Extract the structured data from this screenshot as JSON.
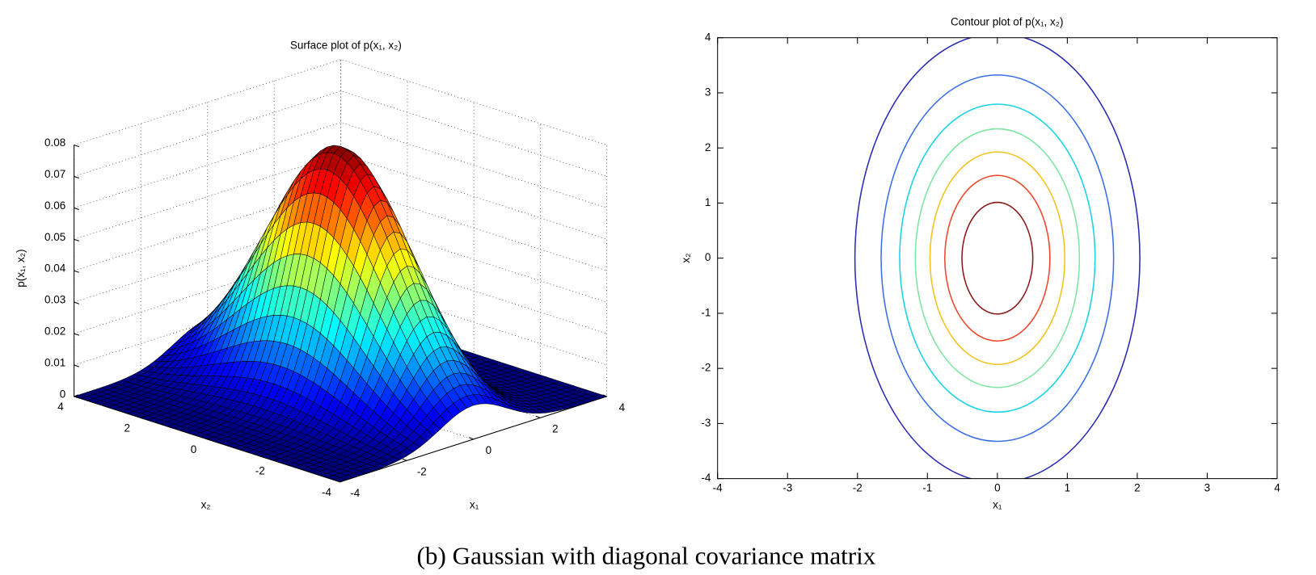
{
  "caption": "(b) Gaussian with diagonal covariance matrix",
  "chart_data": [
    {
      "type": "surface",
      "title": "Surface plot of p(x₁, x₂)",
      "xlabel": "x₁",
      "ylabel": "x₂",
      "zlabel": "p(x₁, x₂)",
      "mean": [
        0,
        0
      ],
      "sigma": [
        1,
        2
      ],
      "xlim": [
        -4,
        4
      ],
      "xticks": [
        -4,
        -2,
        0,
        2,
        4
      ],
      "ylim": [
        -4,
        4
      ],
      "yticks": [
        -4,
        -2,
        0,
        2,
        4
      ],
      "zlim": [
        0,
        0.08
      ],
      "zticks": [
        0,
        0.01,
        0.02,
        0.03,
        0.04,
        0.05,
        0.06,
        0.07,
        0.08
      ],
      "grid": true,
      "colormap": "jet"
    },
    {
      "type": "contour",
      "title": "Contour plot of p(x₁, x₂)",
      "xlabel": "x₁",
      "ylabel": "x₂",
      "mean": [
        0,
        0
      ],
      "sigma": [
        1,
        2
      ],
      "xlim": [
        -4,
        4
      ],
      "xticks": [
        -4,
        -3,
        -2,
        -1,
        0,
        1,
        2,
        3,
        4
      ],
      "ylim": [
        -4,
        4
      ],
      "yticks": [
        -4,
        -3,
        -2,
        -1,
        0,
        1,
        2,
        3,
        4
      ],
      "levels": [
        0.01,
        0.02,
        0.03,
        0.04,
        0.05,
        0.06,
        0.07
      ],
      "colors": [
        "#2b2bb3",
        "#3b6fe8",
        "#19d3e6",
        "#7fe6a0",
        "#f5c21c",
        "#f0472a",
        "#8b1a1a"
      ]
    }
  ]
}
